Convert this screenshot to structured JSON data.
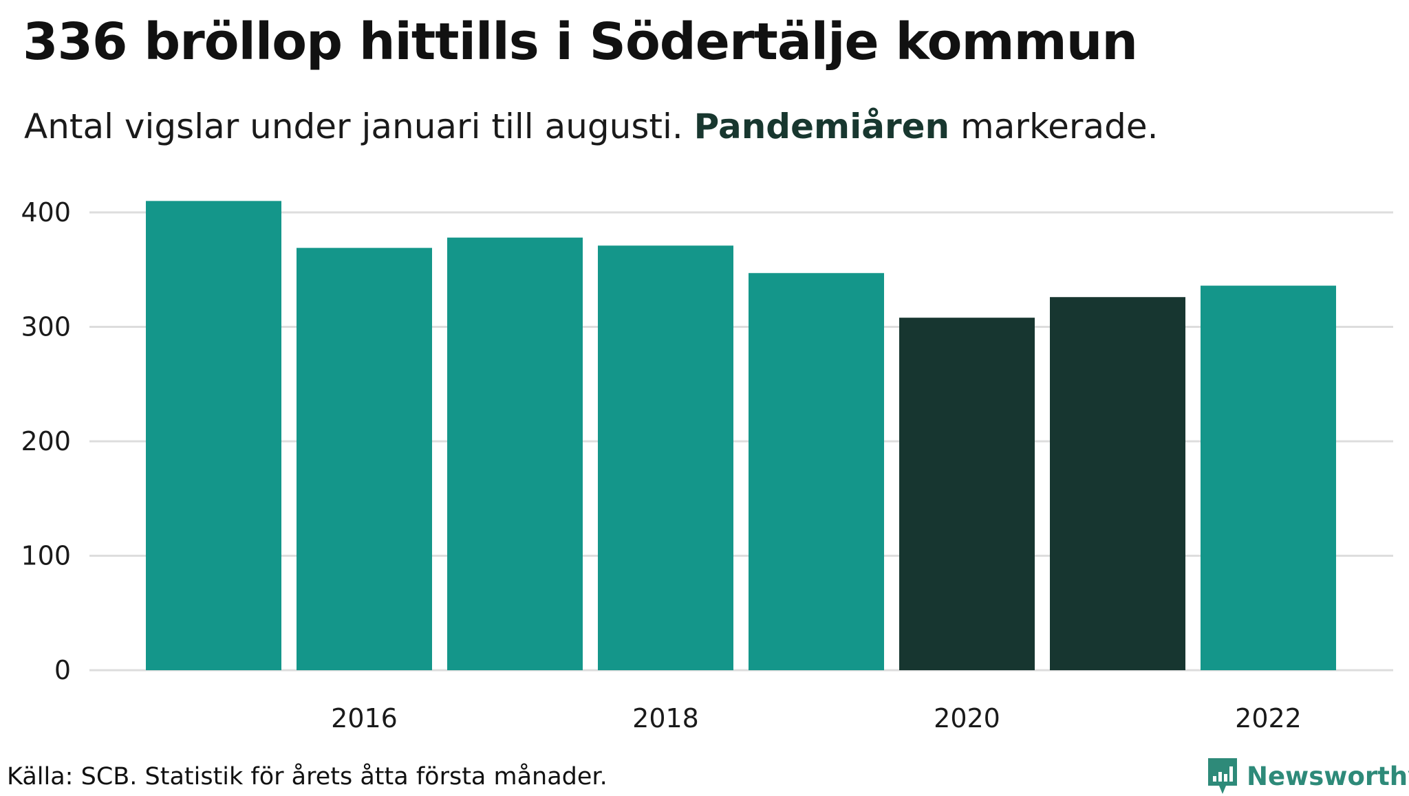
{
  "header": {
    "title": "336 bröllop hittills i Södertälje kommun",
    "subtitle_start": "Antal vigslar under januari till augusti. ",
    "subtitle_highlight": "Pandemiåren",
    "subtitle_end": " markerade."
  },
  "footer": {
    "source": "Källa: SCB. Statistik för årets åtta första månader.",
    "brand": "Newsworthy",
    "brand_icon": "bar-chart-flag-icon"
  },
  "colors": {
    "normal": "#14968a",
    "pandemic": "#173630",
    "grid": "#dddddd",
    "brand": "#2e8a79"
  },
  "chart_data": {
    "type": "bar",
    "title": "336 bröllop hittills i Södertälje kommun",
    "subtitle": "Antal vigslar under januari till augusti. Pandemiåren markerade.",
    "xlabel": "",
    "ylabel": "",
    "years": [
      2015,
      2016,
      2017,
      2018,
      2019,
      2020,
      2021,
      2022
    ],
    "values": [
      410,
      369,
      378,
      371,
      347,
      308,
      326,
      336
    ],
    "highlighted_years": [
      2020,
      2021
    ],
    "x_tick_labels": [
      "2016",
      "2018",
      "2020",
      "2022"
    ],
    "y_ticks": [
      0,
      100,
      200,
      300,
      400
    ],
    "ylim": [
      0,
      410
    ],
    "grid": true,
    "legend": "none"
  }
}
